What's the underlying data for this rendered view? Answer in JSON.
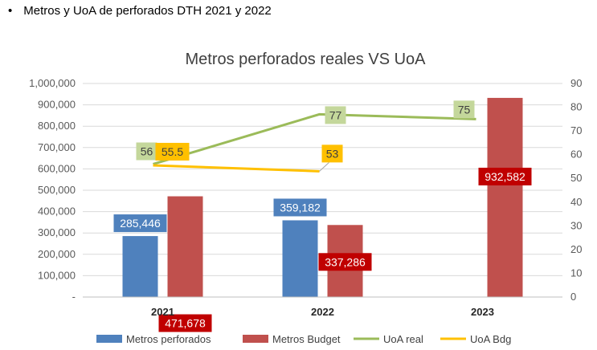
{
  "bullet": {
    "symbol": "•",
    "text": "Metros y UoA de perforados DTH 2021 y 2022"
  },
  "chart_data": {
    "type": "bar",
    "title": "Metros perforados reales VS UoA",
    "categories": [
      "2021",
      "2022",
      "2023"
    ],
    "ylim": [
      0,
      1000000
    ],
    "y2lim": [
      0,
      90
    ],
    "y_ticks": [
      "-",
      "100,000",
      "200,000",
      "300,000",
      "400,000",
      "500,000",
      "600,000",
      "700,000",
      "800,000",
      "900,000",
      "1,000,000"
    ],
    "y2_ticks": [
      "0",
      "10",
      "20",
      "30",
      "40",
      "50",
      "60",
      "70",
      "80",
      "90"
    ],
    "grid": true,
    "legend_position": "bottom",
    "series": [
      {
        "name": "Metros perforados",
        "kind": "bar",
        "axis": "left",
        "color": "#4f81bd",
        "values": [
          285446,
          359182,
          null
        ],
        "labels": [
          "285,446",
          "359,182",
          null
        ],
        "label_bg": "#4f81bd"
      },
      {
        "name": "Metros Budget",
        "kind": "bar",
        "axis": "left",
        "color": "#c0504d",
        "values": [
          471678,
          337286,
          932582
        ],
        "labels": [
          "471,678",
          "337,286",
          "932,582"
        ],
        "label_bg": "#c00000"
      },
      {
        "name": "UoA real",
        "kind": "line",
        "axis": "right",
        "color": "#9bbb59",
        "values": [
          56,
          77,
          75
        ],
        "labels": [
          "56",
          "77",
          "75"
        ],
        "label_bg": "#c4d79b"
      },
      {
        "name": "UoA Bdg",
        "kind": "line",
        "axis": "right",
        "color": "#ffc000",
        "values": [
          55.5,
          53,
          null
        ],
        "labels": [
          "55.5",
          "53",
          null
        ],
        "label_bg": "#ffc000"
      }
    ]
  }
}
